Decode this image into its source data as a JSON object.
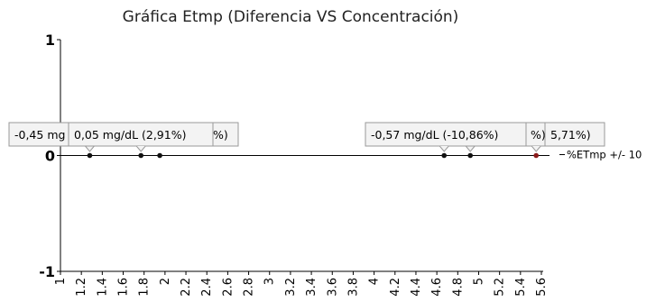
{
  "chart_data": {
    "type": "scatter",
    "title": "Gráfica Etmp (Diferencia VS Concentración)",
    "xlabel": "",
    "ylabel": "",
    "xlim": [
      1,
      5.6
    ],
    "ylim": [
      -1,
      1
    ],
    "y_ticks": [
      "1",
      "0",
      "-1"
    ],
    "x_ticks": [
      "1",
      "1.2",
      "1.4",
      "1.6",
      "1.8",
      "2",
      "2.2",
      "2.4",
      "2.6",
      "2.8",
      "3",
      "3.2",
      "3.4",
      "3.6",
      "3.8",
      "4",
      "4.2",
      "4.4",
      "4.6",
      "4.8",
      "5",
      "5.2",
      "5.4",
      "5.6"
    ],
    "legend": {
      "label": "%ETmp +/- 10",
      "placement": "right"
    },
    "grid": false,
    "points": [
      {
        "x": 1.28,
        "y": 0,
        "color": "#111111"
      },
      {
        "x": 1.77,
        "y": 0,
        "color": "#111111"
      },
      {
        "x": 1.95,
        "y": 0,
        "color": "#111111"
      },
      {
        "x": 4.67,
        "y": 0,
        "color": "#111111"
      },
      {
        "x": 4.92,
        "y": 0,
        "color": "#111111"
      },
      {
        "x": 5.55,
        "y": 0,
        "color": "#8b1a1a"
      }
    ],
    "tooltips": [
      {
        "text": "-0,45 mg",
        "anchor": 0
      },
      {
        "text": "%)",
        "anchor": 1
      },
      {
        "text": "0,05 mg/dL (2,91%)",
        "anchor": 1
      },
      {
        "text": "%)",
        "anchor": 4
      },
      {
        "text": "5,71%)",
        "anchor": 5
      },
      {
        "text": "-0,57 mg/dL (-10,86%)",
        "anchor": 3
      }
    ]
  }
}
